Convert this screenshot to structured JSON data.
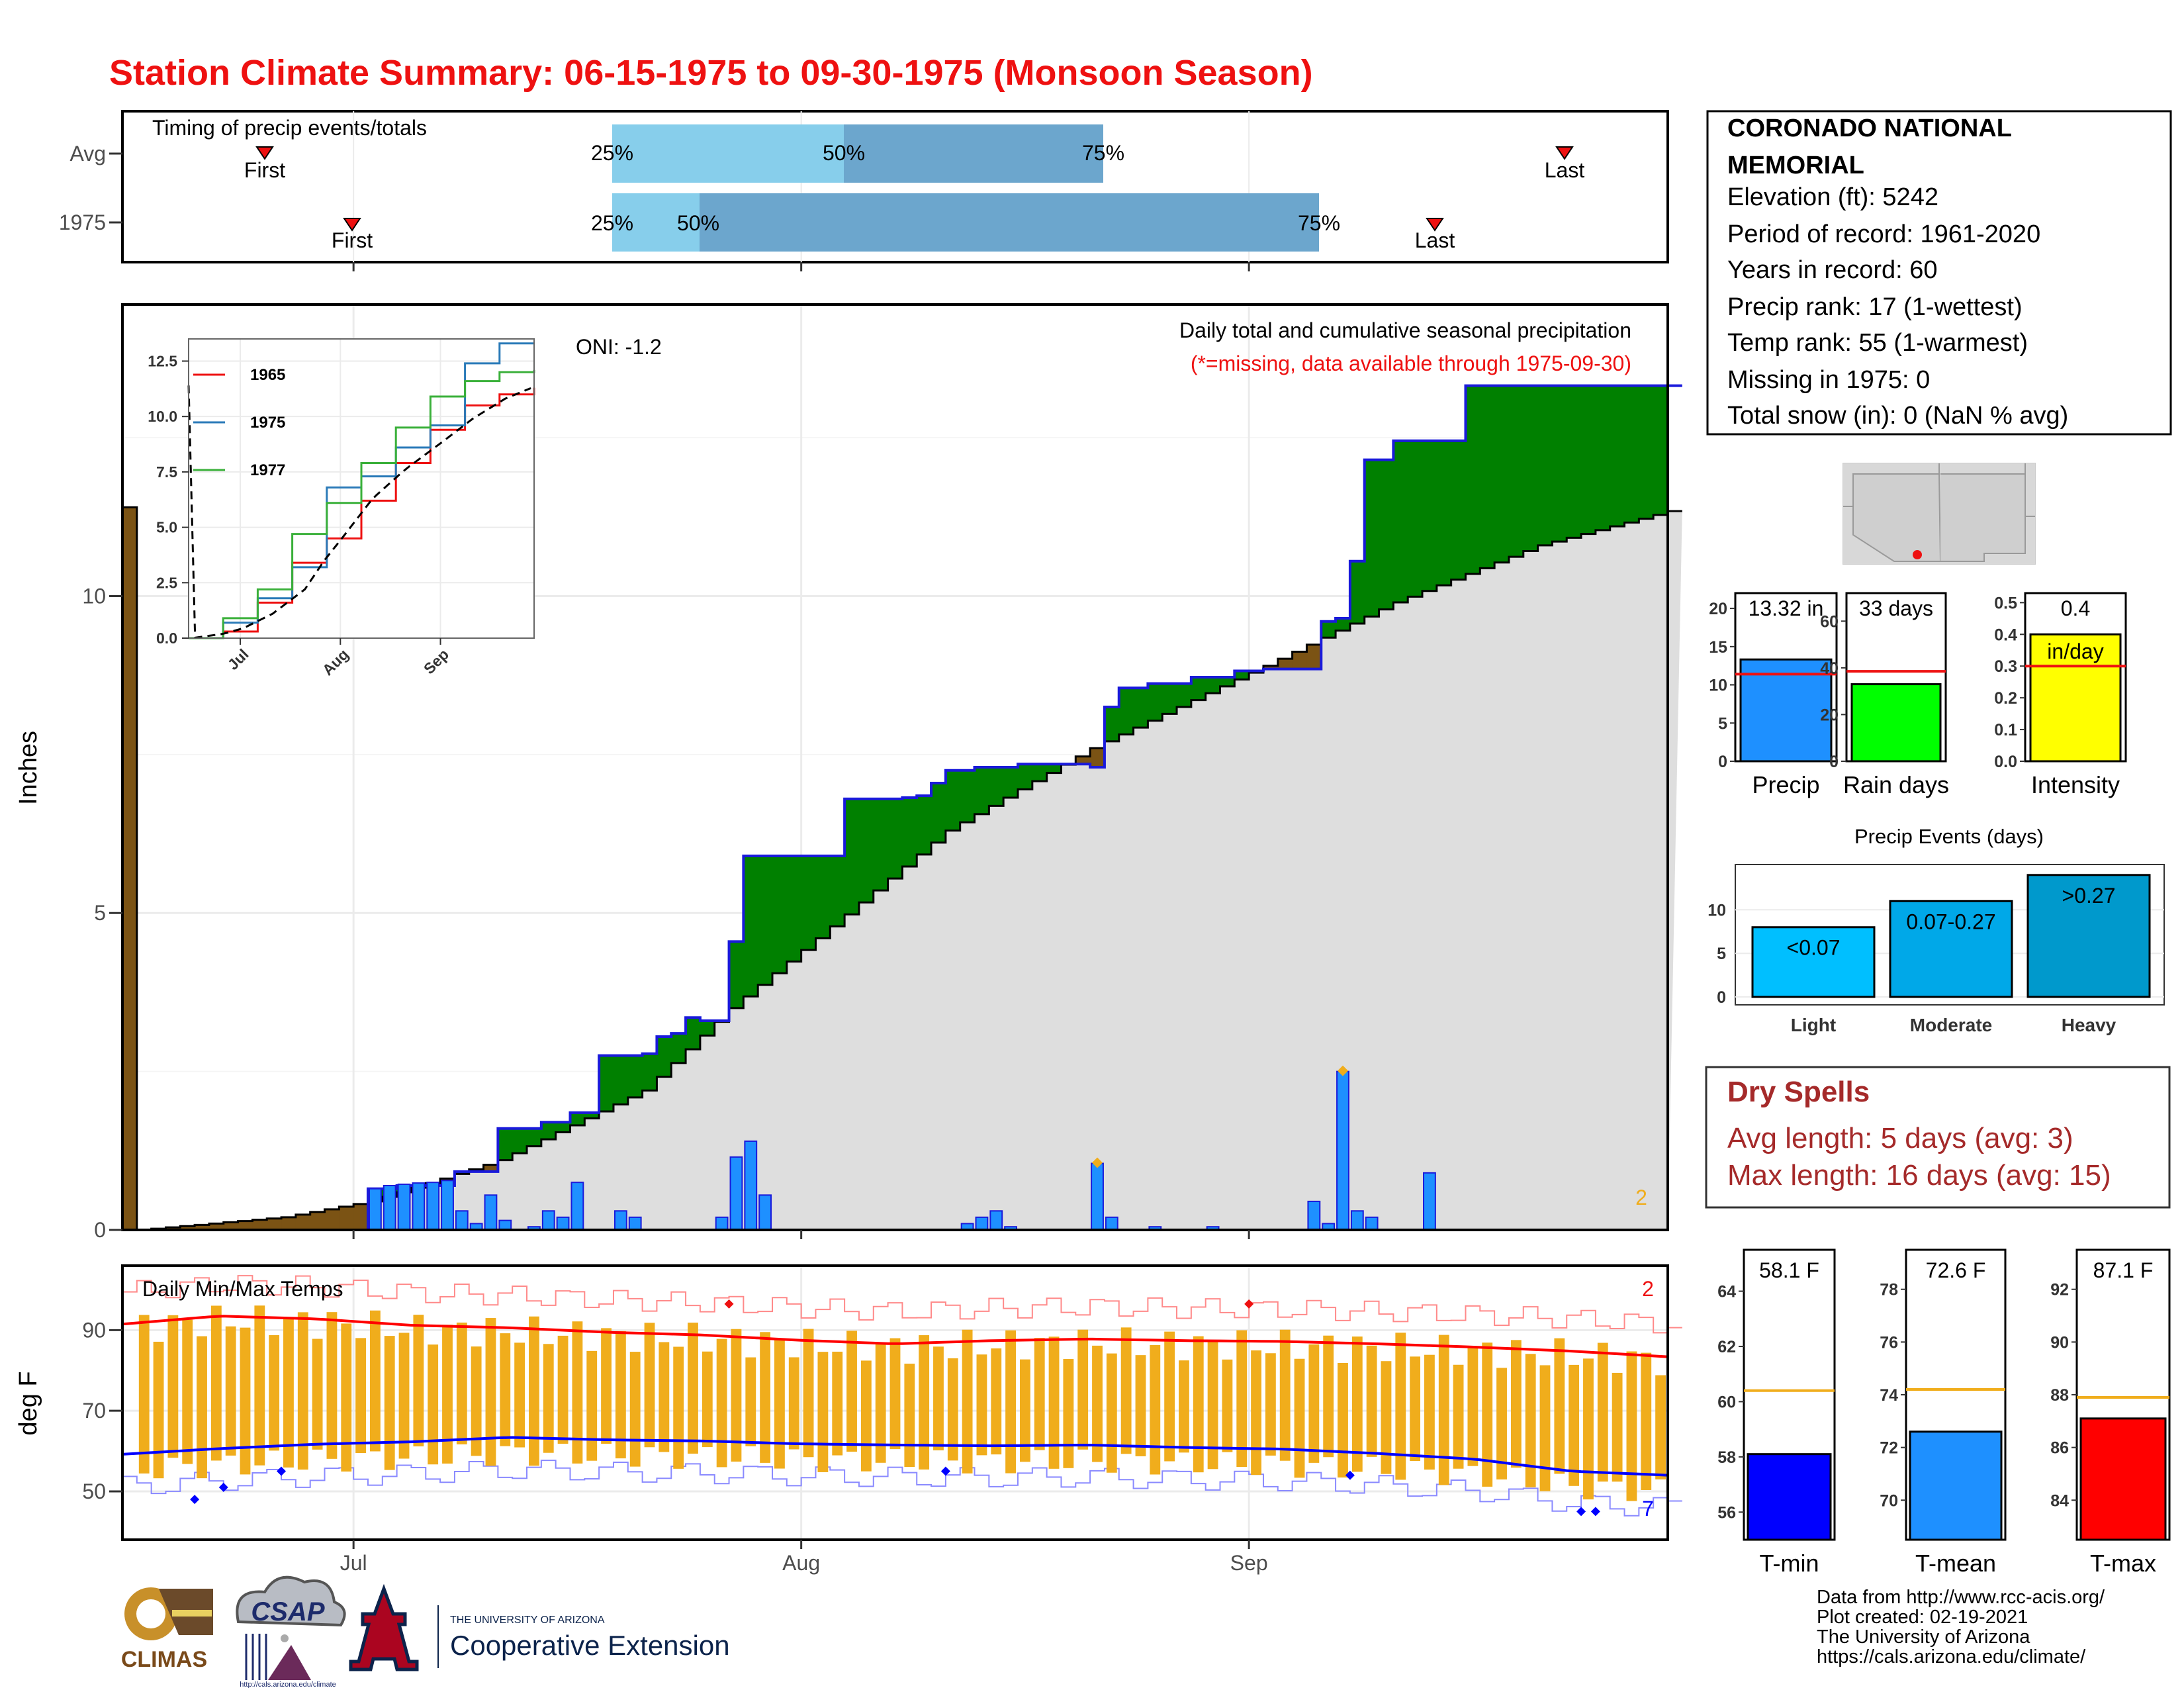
{
  "title": "Station Climate Summary: 06-15-1975 to 09-30-1975 (Monsoon Season)",
  "colors": {
    "title": "#ee1111",
    "dry": "#a52a2a",
    "surplus": "#008000",
    "deficit": "#7b5314",
    "avg_fill": "#dedede",
    "bar": "#1e90ff",
    "orange": "#f0ad1c",
    "tmax": "#ff0000",
    "tmin": "#0000ff",
    "q_light": "#87ceeb",
    "q_dark": "#6ca6cd"
  },
  "timing": {
    "title": "Timing of precip events/totals",
    "rows": [
      "Avg",
      "1975"
    ],
    "avg": {
      "first": "First",
      "last": "Last",
      "p25": "25%",
      "p50": "50%",
      "p75": "75%"
    },
    "y1975": {
      "first": "First",
      "last": "Last",
      "p25": "25%",
      "p50": "50%",
      "p75": "75%"
    }
  },
  "main_chart": {
    "ylabel": "Inches",
    "yticks": [
      "0",
      "5",
      "10"
    ],
    "xticks": [
      "Jul",
      "Aug",
      "Sep"
    ],
    "oni": "ONI: -1.2",
    "subtitle1": "Daily total and cumulative seasonal precipitation",
    "subtitle2": "(*=missing, data available through 1975-09-30)",
    "corner_count": "2"
  },
  "inset": {
    "yticks": [
      "0.0",
      "2.5",
      "5.0",
      "7.5",
      "10.0",
      "12.5"
    ],
    "xticks": [
      "Jul",
      "Aug",
      "Sep"
    ],
    "legend": [
      {
        "name": "1965",
        "color": "#ee1111"
      },
      {
        "name": "1975",
        "color": "#2a7ab8"
      },
      {
        "name": "1977",
        "color": "#3ab03a"
      }
    ]
  },
  "temp_chart": {
    "title": "Daily Min/Max Temps",
    "ylabel": "deg F",
    "yticks": [
      "50",
      "70",
      "90"
    ],
    "count_top": "2",
    "count_bottom": "7"
  },
  "station": {
    "name1": "CORONADO NATIONAL",
    "name2": "MEMORIAL",
    "lines": [
      "Elevation (ft): 5242",
      "Period of record: 1961-2020",
      "Years in record: 60",
      "Precip rank: 17 (1-wettest)",
      "Temp rank: 55 (1-warmest)",
      "Missing in 1975: 0",
      "Total snow (in): 0 (NaN % avg)"
    ]
  },
  "summary_bars": [
    {
      "label": "Precip",
      "value_label": "13.32 in",
      "value": 13.32,
      "avg": 11.4,
      "ymax": 22,
      "ticks": [
        "0",
        "5",
        "10",
        "15",
        "20"
      ],
      "tickvals": [
        0,
        5,
        10,
        15,
        20
      ],
      "color": "#1e90ff"
    },
    {
      "label": "Rain days",
      "value_label": "33 days",
      "value": 33,
      "avg": 38.5,
      "ymax": 72,
      "ticks": [
        "0",
        "20",
        "40",
        "60"
      ],
      "tickvals": [
        0,
        20,
        40,
        60
      ],
      "color": "#00ff00"
    },
    {
      "label": "Intensity",
      "value_label": "0.4",
      "value_label2": "in/day",
      "value": 0.4,
      "avg": 0.3,
      "ymax": 0.53,
      "ticks": [
        "0.0",
        "0.1",
        "0.2",
        "0.3",
        "0.4",
        "0.5"
      ],
      "tickvals": [
        0,
        0.1,
        0.2,
        0.3,
        0.4,
        0.5
      ],
      "color": "#ffff00"
    }
  ],
  "precip_events": {
    "title": "Precip Events (days)",
    "yticks": [
      "0",
      "5",
      "10"
    ],
    "categories": [
      "Light",
      "Moderate",
      "Heavy"
    ],
    "labels": [
      "<0.07",
      "0.07-0.27",
      ">0.27"
    ],
    "values": [
      8,
      11,
      14
    ],
    "colors": [
      "#00bfff",
      "#00a8e8",
      "#0099cc"
    ]
  },
  "dry_spells": {
    "title": "Dry Spells",
    "avg_line": "Avg length: 5 days (avg: 3)",
    "max_line": "Max length: 16 days (avg: 15)"
  },
  "temp_bars": [
    {
      "label": "T-min",
      "value_label": "58.1 F",
      "value": 58.1,
      "avg": 60.4,
      "ymin": 55,
      "ymax": 65.5,
      "ticks": [
        "56",
        "58",
        "60",
        "62",
        "64"
      ],
      "tickvals": [
        56,
        58,
        60,
        62,
        64
      ],
      "color": "#0000ff"
    },
    {
      "label": "T-mean",
      "value_label": "72.6 F",
      "value": 72.6,
      "avg": 74.2,
      "ymin": 68.5,
      "ymax": 79.5,
      "ticks": [
        "70",
        "72",
        "74",
        "76",
        "78"
      ],
      "tickvals": [
        70,
        72,
        74,
        76,
        78
      ],
      "color": "#1e90ff"
    },
    {
      "label": "T-max",
      "value_label": "87.1 F",
      "value": 87.1,
      "avg": 87.9,
      "ymin": 82.5,
      "ymax": 93.5,
      "ticks": [
        "84",
        "86",
        "88",
        "90",
        "92"
      ],
      "tickvals": [
        84,
        86,
        88,
        90,
        92
      ],
      "color": "#ff0000"
    }
  ],
  "footer": {
    "logos": [
      "CLIMAS",
      "CSAP"
    ],
    "csap_url": "http://cals.arizona.edu/climate",
    "ua_line1": "THE UNIVERSITY OF ARIZONA",
    "ua_line2": "Cooperative Extension",
    "credits": [
      "Data from http://www.rcc-acis.org/",
      "Plot created: 02-19-2021",
      "The University of Arizona",
      "https://cals.arizona.edu/climate/"
    ]
  },
  "chart_data": [
    {
      "type": "area",
      "title": "Daily total and cumulative seasonal precipitation",
      "ylabel": "Inches",
      "ylim": [
        0,
        14.6
      ],
      "xlim": [
        "1975-06-15",
        "1975-09-30"
      ],
      "series": [
        {
          "name": "1975",
          "type": "line",
          "x": [
            "06-15",
            "07-01",
            "07-03",
            "07-07",
            "07-10",
            "07-13",
            "07-15",
            "07-17",
            "07-20",
            "07-21",
            "07-22",
            "07-23",
            "07-24",
            "07-26",
            "07-27",
            "08-03",
            "08-07",
            "08-08",
            "08-09",
            "08-10",
            "08-12",
            "08-15",
            "08-20",
            "08-21",
            "08-22",
            "08-24",
            "08-27",
            "08-30",
            "09-01",
            "09-05",
            "09-06",
            "09-07",
            "09-08",
            "09-10",
            "09-14",
            "09-15",
            "09-30"
          ],
          "values": [
            0.0,
            0.65,
            0.7,
            0.92,
            1.6,
            1.7,
            1.85,
            2.75,
            2.78,
            3.05,
            3.1,
            3.35,
            3.3,
            4.55,
            5.9,
            6.8,
            6.82,
            6.85,
            7.05,
            7.25,
            7.3,
            7.35,
            7.3,
            8.25,
            8.55,
            8.62,
            8.72,
            8.82,
            8.85,
            9.6,
            9.65,
            10.55,
            12.15,
            12.45,
            12.45,
            13.32,
            13.32
          ]
        },
        {
          "name": "Avg",
          "type": "line",
          "x": [
            "06-15",
            "06-25",
            "07-01",
            "07-10",
            "07-20",
            "07-26",
            "08-01",
            "08-10",
            "08-20",
            "09-01",
            "09-10",
            "09-20",
            "09-30"
          ],
          "values": [
            0.0,
            0.2,
            0.45,
            1.1,
            2.2,
            3.5,
            4.6,
            6.3,
            7.6,
            8.9,
            9.9,
            10.8,
            11.4
          ]
        },
        {
          "name": "Daily",
          "type": "bar",
          "x": [
            "07-01",
            "07-02",
            "07-03",
            "07-04",
            "07-05",
            "07-06",
            "07-07",
            "07-08",
            "07-09",
            "07-10",
            "07-12",
            "07-13",
            "07-14",
            "07-15",
            "07-18",
            "07-19",
            "07-25",
            "07-26",
            "07-27",
            "07-28",
            "08-11",
            "08-12",
            "08-13",
            "08-14",
            "08-20",
            "08-21",
            "08-24",
            "08-28",
            "09-04",
            "09-05",
            "09-06",
            "09-07",
            "09-08",
            "09-12"
          ],
          "values": [
            0.65,
            0.7,
            0.72,
            0.74,
            0.75,
            0.78,
            0.3,
            0.1,
            0.55,
            0.15,
            0.05,
            0.3,
            0.2,
            0.75,
            0.3,
            0.2,
            0.2,
            1.15,
            1.4,
            0.55,
            0.1,
            0.2,
            0.3,
            0.05,
            1.05,
            0.2,
            0.05,
            0.05,
            0.45,
            0.1,
            2.5,
            0.3,
            0.2,
            0.9
          ]
        }
      ]
    },
    {
      "type": "line",
      "title": "",
      "ylim": [
        0,
        13.5
      ],
      "series": [
        {
          "name": "1965",
          "values": [
            0,
            0.3,
            1.6,
            3.4,
            4.5,
            6.2,
            7.9,
            9.4,
            10.5,
            11.0,
            11.3
          ]
        },
        {
          "name": "1975",
          "values": [
            0,
            0.7,
            1.8,
            3.2,
            6.8,
            7.3,
            8.6,
            9.6,
            12.4,
            13.3,
            13.3
          ]
        },
        {
          "name": "1977",
          "values": [
            0,
            0.9,
            2.2,
            4.7,
            6.1,
            7.9,
            9.5,
            10.9,
            11.6,
            12.0,
            12.1
          ]
        }
      ]
    },
    {
      "type": "bar",
      "title": "Daily Min/Max Temps",
      "ylabel": "deg F",
      "ylim": [
        38,
        106
      ],
      "series": [
        {
          "name": "Avg max",
          "values": [
            91.5,
            93.5,
            92.8,
            91.2,
            90.6,
            89.5,
            88.8,
            87.5,
            86.6,
            87.4,
            87.8,
            87.4,
            87.2,
            86.6,
            85.8,
            84.8,
            83.4
          ]
        },
        {
          "name": "Avg min",
          "values": [
            59.2,
            60.6,
            61.7,
            62.3,
            63.4,
            62.8,
            62.5,
            61.8,
            61.5,
            61.3,
            61.5,
            60.9,
            60.5,
            59.4,
            58.0,
            55.0,
            54.0
          ]
        }
      ]
    }
  ]
}
